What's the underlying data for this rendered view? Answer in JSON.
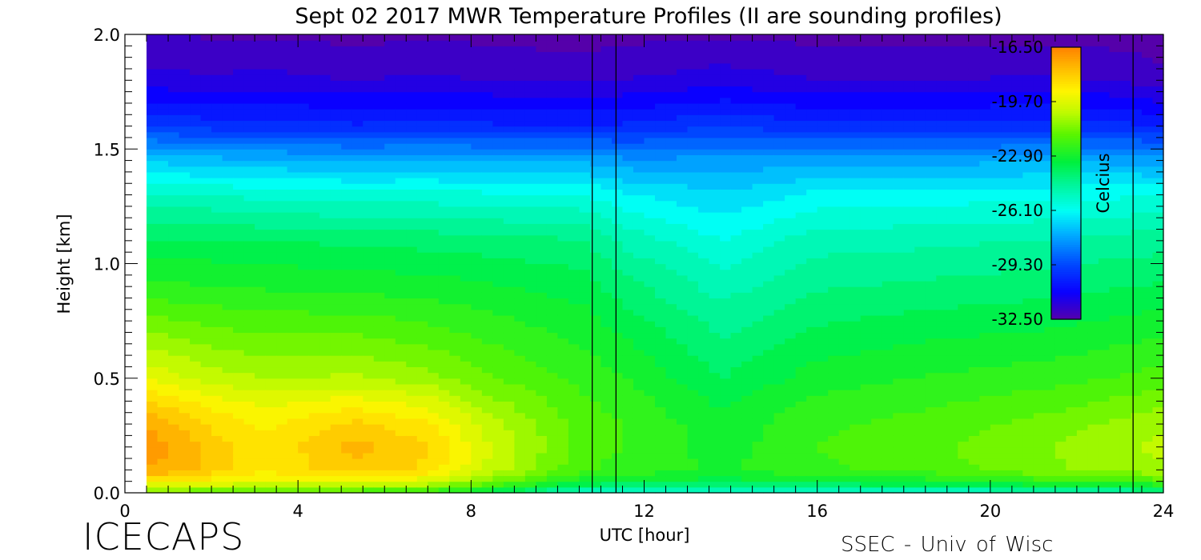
{
  "chart_data": {
    "type": "heatmap",
    "title": "Sept 02 2017 MWR Temperature Profiles (II are sounding profiles)",
    "xlabel": "UTC [hour]",
    "ylabel": "Height [km]",
    "xlim": [
      0,
      24
    ],
    "ylim": [
      0,
      2.0
    ],
    "x_ticks": [
      0,
      4,
      8,
      12,
      16,
      20,
      24
    ],
    "x_tick_labels": [
      "0",
      "4",
      "8",
      "12",
      "16",
      "20",
      "24"
    ],
    "y_ticks": [
      0.0,
      0.5,
      1.0,
      1.5,
      2.0
    ],
    "y_tick_labels": [
      "0.0",
      "0.5",
      "1.0",
      "1.5",
      "2.0"
    ],
    "data_start_hour": 0.5,
    "sounding_times_hour": [
      10.8,
      11.35,
      23.3
    ],
    "colorbar": {
      "label": "Celcius",
      "min": -32.5,
      "max": -16.5,
      "ticks": [
        -16.5,
        -19.7,
        -22.9,
        -26.1,
        -29.3,
        -32.5
      ],
      "tick_labels": [
        "-16.50",
        "-19.70",
        "-22.90",
        "-26.10",
        "-29.30",
        "-32.50"
      ]
    },
    "profile_heights_km": [
      0.0,
      0.05,
      0.1,
      0.2,
      0.3,
      0.4,
      0.5,
      0.7,
      0.9,
      1.1,
      1.3,
      1.45,
      1.6,
      1.8,
      2.0
    ],
    "profiles": [
      {
        "hour": 0.5,
        "temps_c": [
          -21.5,
          -18.8,
          -17.3,
          -16.9,
          -17.3,
          -18.3,
          -19.5,
          -21.0,
          -22.5,
          -23.6,
          -25.2,
          -27.0,
          -29.5,
          -31.5,
          -32.2
        ]
      },
      {
        "hour": 2.0,
        "temps_c": [
          -21.8,
          -19.2,
          -18.0,
          -18.0,
          -18.5,
          -19.2,
          -20.2,
          -21.4,
          -22.6,
          -23.6,
          -25.3,
          -27.2,
          -29.8,
          -31.6,
          -32.3
        ]
      },
      {
        "hour": 3.3,
        "temps_c": [
          -22.0,
          -19.6,
          -18.8,
          -18.8,
          -19.0,
          -19.6,
          -20.5,
          -21.6,
          -22.7,
          -23.7,
          -25.5,
          -27.3,
          -29.8,
          -31.5,
          -32.3
        ]
      },
      {
        "hour": 5.3,
        "temps_c": [
          -22.2,
          -19.5,
          -18.0,
          -17.6,
          -18.2,
          -19.2,
          -20.4,
          -21.6,
          -22.8,
          -23.8,
          -25.6,
          -27.5,
          -30.0,
          -31.7,
          -32.4
        ]
      },
      {
        "hour": 7.0,
        "temps_c": [
          -22.6,
          -19.8,
          -18.5,
          -18.3,
          -18.8,
          -19.7,
          -20.8,
          -21.9,
          -22.9,
          -23.9,
          -25.6,
          -27.4,
          -29.9,
          -31.6,
          -32.3
        ]
      },
      {
        "hour": 8.5,
        "temps_c": [
          -23.8,
          -21.2,
          -20.2,
          -20.0,
          -20.3,
          -20.9,
          -21.5,
          -22.3,
          -23.1,
          -24.0,
          -25.7,
          -27.5,
          -30.0,
          -31.7,
          -32.4
        ]
      },
      {
        "hour": 10.6,
        "temps_c": [
          -25.5,
          -23.0,
          -22.0,
          -21.8,
          -21.8,
          -22.0,
          -22.3,
          -22.8,
          -23.4,
          -24.2,
          -25.8,
          -27.5,
          -30.0,
          -31.8,
          -32.5
        ]
      },
      {
        "hour": 11.5,
        "temps_c": [
          -25.8,
          -23.2,
          -22.3,
          -22.1,
          -22.1,
          -22.3,
          -22.6,
          -23.2,
          -24.0,
          -24.9,
          -26.3,
          -27.8,
          -30.0,
          -31.7,
          -32.4
        ]
      },
      {
        "hour": 13.8,
        "temps_c": [
          -25.8,
          -23.4,
          -22.7,
          -22.9,
          -23.0,
          -23.3,
          -23.7,
          -24.3,
          -25.0,
          -25.8,
          -26.8,
          -27.8,
          -29.6,
          -31.4,
          -32.3
        ]
      },
      {
        "hour": 16.0,
        "temps_c": [
          -25.8,
          -23.1,
          -22.2,
          -22.1,
          -22.2,
          -22.5,
          -22.9,
          -23.6,
          -24.3,
          -25.0,
          -26.2,
          -27.6,
          -29.9,
          -31.7,
          -32.4
        ]
      },
      {
        "hour": 18.5,
        "temps_c": [
          -25.7,
          -22.9,
          -21.9,
          -21.7,
          -21.9,
          -22.2,
          -22.6,
          -23.3,
          -24.1,
          -24.9,
          -26.1,
          -27.6,
          -29.9,
          -31.7,
          -32.4
        ]
      },
      {
        "hour": 21.5,
        "temps_c": [
          -25.3,
          -22.3,
          -21.1,
          -21.0,
          -21.3,
          -21.8,
          -22.3,
          -23.1,
          -23.9,
          -24.7,
          -26.0,
          -27.5,
          -29.8,
          -31.6,
          -32.4
        ]
      },
      {
        "hour": 23.3,
        "temps_c": [
          -25.0,
          -22.0,
          -20.8,
          -20.5,
          -20.8,
          -21.4,
          -22.0,
          -22.8,
          -23.7,
          -24.5,
          -25.9,
          -27.6,
          -30.0,
          -31.8,
          -32.5
        ]
      },
      {
        "hour": 24.0,
        "temps_c": [
          -24.8,
          -21.8,
          -20.6,
          -20.3,
          -20.6,
          -21.2,
          -21.8,
          -22.7,
          -23.6,
          -24.5,
          -25.9,
          -27.7,
          -30.2,
          -32.0,
          -32.6
        ]
      }
    ]
  },
  "footer": {
    "left_logo_text": "ICECAPS",
    "right_credit": "SSEC - Univ of Wisc"
  }
}
